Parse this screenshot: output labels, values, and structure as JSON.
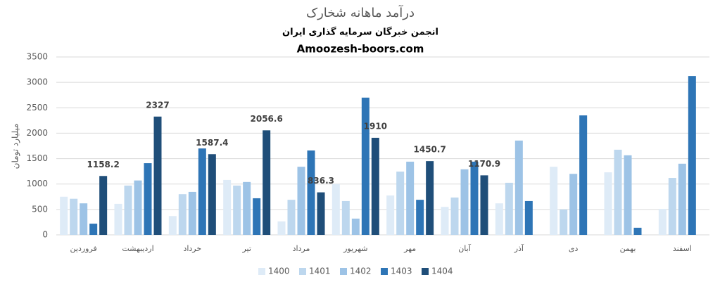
{
  "chart_data": {
    "type": "bar",
    "title": "درآمد ماهانه شخارک",
    "subtitle": "انجمن خبرگان سرمایه گذاری ایران",
    "source": "Amoozesh-boors.com",
    "y_label": "میلیارد تومان",
    "categories": [
      "فروردین",
      "اردیبهشت",
      "خرداد",
      "تیر",
      "مرداد",
      "شهریور",
      "مهر",
      "آبان",
      "آذر",
      "دی",
      "بهمن",
      "اسفند"
    ],
    "series": [
      {
        "name": "1400",
        "color": "#deebf7",
        "values": [
          750,
          610,
          370,
          1080,
          265,
          1000,
          775,
          550,
          620,
          1340,
          1230,
          510
        ]
      },
      {
        "name": "1401",
        "color": "#bdd7ee",
        "values": [
          710,
          970,
          800,
          970,
          690,
          665,
          1245,
          735,
          1025,
          500,
          1675,
          1120
        ]
      },
      {
        "name": "1402",
        "color": "#9dc3e6",
        "values": [
          620,
          1070,
          845,
          1040,
          1340,
          320,
          1440,
          1290,
          1855,
          1200,
          1565,
          1400
        ]
      },
      {
        "name": "1403",
        "color": "#2e75b6",
        "values": [
          220,
          1410,
          1700,
          720,
          1660,
          2700,
          690,
          1440,
          665,
          2350,
          140,
          3125
        ]
      },
      {
        "name": "1404",
        "color": "#1f4e79",
        "values": [
          1158.2,
          2327,
          1587.4,
          2056.6,
          836.3,
          1910,
          1450.7,
          1170.9,
          null,
          null,
          null,
          null
        ],
        "data_labels": true
      }
    ],
    "ylim": [
      0,
      3500
    ],
    "yticks": [
      0,
      500,
      1000,
      1500,
      2000,
      2500,
      3000,
      3500
    ],
    "grid": true,
    "legend": "bottom"
  }
}
